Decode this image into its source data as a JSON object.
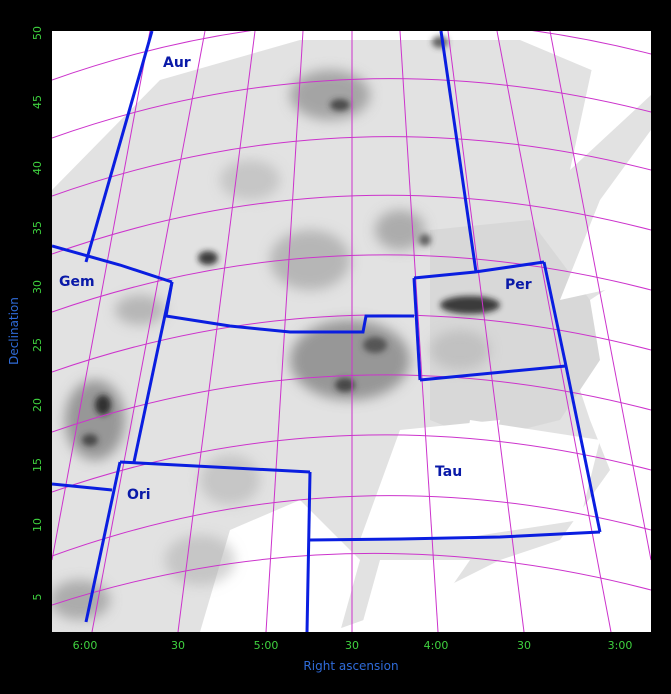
{
  "chart_data": {
    "type": "map",
    "projection": "celestial sky map (RA / Dec) with coordinate grid",
    "xlabel": "Right ascension",
    "ylabel": "Declination",
    "x_ticks": [
      "6:00",
      "30",
      "5:00",
      "30",
      "4:00",
      "30",
      "3:00"
    ],
    "y_ticks": [
      "5",
      "10",
      "15",
      "20",
      "25",
      "30",
      "35",
      "40",
      "45",
      "50"
    ],
    "constellations": [
      "Aur",
      "Gem",
      "Per",
      "Ori",
      "Tau"
    ],
    "grid_color": "#cc33cc",
    "boundary_color": "#0a1ee0",
    "background_color": "#000000",
    "image_style": "grayscale extinction / dust map on white sky"
  }
}
